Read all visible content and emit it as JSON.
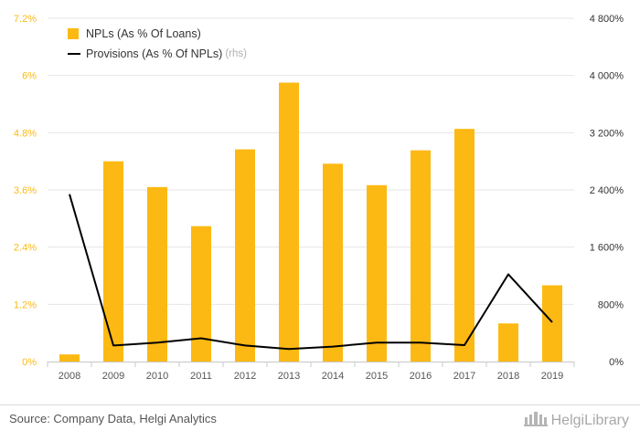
{
  "colors": {
    "bar": "#FDB913",
    "line": "#000000",
    "left_axis_text": "#FDB913",
    "right_axis_text": "#333333",
    "grid": "#e6e6e6",
    "baseline": "#c8c8c8"
  },
  "legend": {
    "bar_label": "NPLs (As % Of Loans)",
    "line_label": "Provisions (As % Of NPLs)",
    "line_suffix": "(rhs)"
  },
  "footer": {
    "source": "Source: Company Data, Helgi Analytics",
    "brand": "HelgiLibrary",
    "brand_icon": "library-building-icon"
  },
  "chart_data": {
    "type": "bar",
    "categories": [
      "2008",
      "2009",
      "2010",
      "2011",
      "2012",
      "2013",
      "2014",
      "2015",
      "2016",
      "2017",
      "2018",
      "2019"
    ],
    "series": [
      {
        "name": "NPLs (As % Of Loans)",
        "type": "bar",
        "axis": "left",
        "values": [
          0.15,
          4.2,
          3.66,
          2.84,
          4.45,
          5.85,
          4.15,
          3.7,
          4.43,
          4.88,
          0.8,
          1.6
        ]
      },
      {
        "name": "Provisions (As % Of NPLs)",
        "type": "line",
        "axis": "right",
        "values": [
          2340,
          225,
          265,
          325,
          225,
          175,
          210,
          265,
          265,
          230,
          1220,
          550
        ]
      }
    ],
    "left_axis": {
      "min": 0,
      "max": 7.2,
      "ticks": [
        "0%",
        "1.2%",
        "2.4%",
        "3.6%",
        "4.8%",
        "6%",
        "7.2%"
      ]
    },
    "right_axis": {
      "min": 0,
      "max": 4800,
      "ticks": [
        "0%",
        "800%",
        "1 600%",
        "2 400%",
        "3 200%",
        "4 000%",
        "4 800%"
      ]
    },
    "grid": true,
    "legend_position": "top-left"
  }
}
